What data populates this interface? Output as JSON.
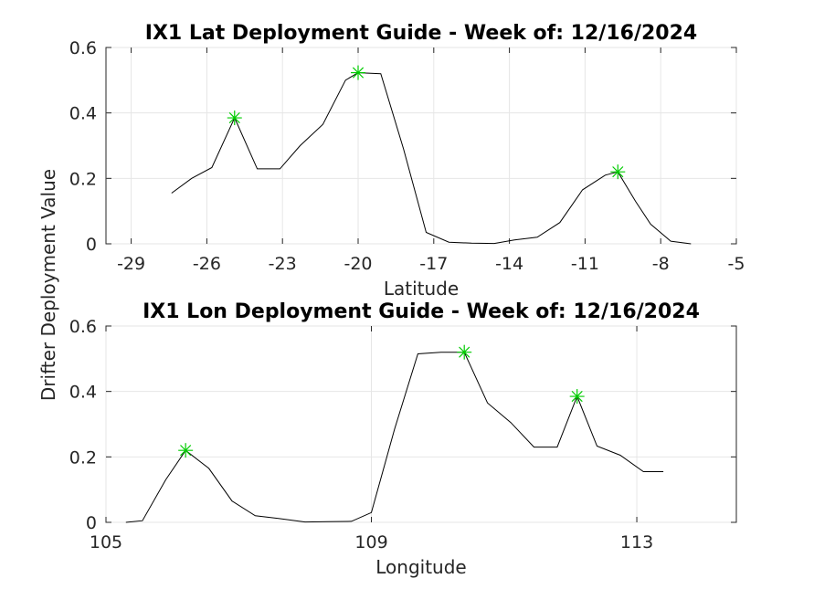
{
  "chart_data": [
    {
      "type": "line",
      "title": "IX1 Lat Deployment Guide - Week of: 12/16/2024",
      "xlabel": "Latitude",
      "ylabel": "Drifter Deployment Value",
      "xlim": [
        -30,
        -5
      ],
      "ylim": [
        0,
        0.6
      ],
      "xticks": [
        -29,
        -26,
        -23,
        -20,
        -17,
        -14,
        -11,
        -8,
        -5
      ],
      "xtick_labels": [
        "-29",
        "-26",
        "-23",
        "-20",
        "-17",
        "-14",
        "-11",
        "-8",
        "-5"
      ],
      "yticks": [
        0,
        0.2,
        0.4,
        0.6
      ],
      "ytick_labels": [
        "0",
        "0.2",
        "0.4",
        "0.6"
      ],
      "grid": true,
      "series": [
        {
          "x": [
            -27.4,
            -26.6,
            -25.8,
            -24.9,
            -24.0,
            -23.1,
            -22.3,
            -21.4,
            -20.5,
            -20.0,
            -19.1,
            -18.2,
            -17.3,
            -16.4,
            -15.5,
            -14.6,
            -13.8,
            -12.9,
            -12.0,
            -11.1,
            -10.2,
            -9.7,
            -9.0,
            -8.4,
            -7.6,
            -6.8
          ],
          "y": [
            0.155,
            0.2,
            0.233,
            0.385,
            0.229,
            0.229,
            0.3,
            0.365,
            0.5,
            0.523,
            0.52,
            0.29,
            0.035,
            0.005,
            0.002,
            0.001,
            0.012,
            0.02,
            0.065,
            0.165,
            0.21,
            0.22,
            0.13,
            0.06,
            0.008,
            0.0
          ],
          "peaks_x": [
            -24.9,
            -20.0,
            -9.7
          ],
          "peaks_y": [
            0.385,
            0.523,
            0.22
          ]
        }
      ],
      "colors": {
        "line": "#000000",
        "marker": "#00cc00"
      }
    },
    {
      "type": "line",
      "title": "IX1 Lon Deployment Guide - Week of: 12/16/2024",
      "xlabel": "Longitude",
      "ylabel": "Drifter Deployment Value",
      "xlim": [
        105,
        114.5
      ],
      "ylim": [
        0,
        0.6
      ],
      "xticks": [
        105,
        109,
        113
      ],
      "xtick_labels": [
        "105",
        "109",
        "113"
      ],
      "yticks": [
        0,
        0.2,
        0.4,
        0.6
      ],
      "ytick_labels": [
        "0",
        "0.2",
        "0.4",
        "0.6"
      ],
      "grid": true,
      "series": [
        {
          "x": [
            105.3,
            105.55,
            105.9,
            106.2,
            106.55,
            106.9,
            107.25,
            107.6,
            108.0,
            108.35,
            108.7,
            109.0,
            109.35,
            109.7,
            110.05,
            110.4,
            110.75,
            111.1,
            111.45,
            111.8,
            112.1,
            112.4,
            112.75,
            113.1,
            113.4
          ],
          "y": [
            0.0,
            0.005,
            0.13,
            0.22,
            0.165,
            0.065,
            0.02,
            0.012,
            0.001,
            0.002,
            0.003,
            0.03,
            0.285,
            0.515,
            0.52,
            0.52,
            0.365,
            0.305,
            0.23,
            0.23,
            0.385,
            0.233,
            0.205,
            0.155,
            0.155
          ],
          "peaks_x": [
            106.2,
            110.4,
            112.1
          ],
          "peaks_y": [
            0.22,
            0.52,
            0.385
          ]
        }
      ],
      "colors": {
        "line": "#000000",
        "marker": "#00cc00"
      }
    }
  ]
}
